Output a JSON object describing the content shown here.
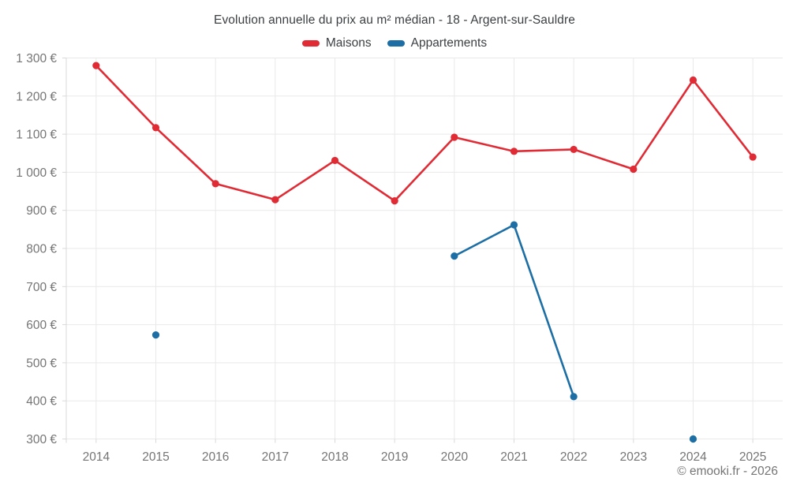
{
  "page": {
    "title": "Evolution annuelle du prix au m² médian - 18 - Argent-sur-Sauldre",
    "copyright": "© emooki.fr - 2026",
    "background": "#ffffff"
  },
  "chart_data": {
    "type": "line",
    "title": "Evolution annuelle du prix au m² médian - 18 - Argent-sur-Sauldre",
    "xlabel": "",
    "ylabel": "",
    "categories": [
      "2014",
      "2015",
      "2016",
      "2017",
      "2018",
      "2019",
      "2020",
      "2021",
      "2022",
      "2023",
      "2024",
      "2025"
    ],
    "series": [
      {
        "name": "Maisons",
        "color": "#e02b35",
        "values": [
          1280,
          1117,
          970,
          928,
          1031,
          925,
          1092,
          1055,
          1060,
          1008,
          1242,
          1040
        ]
      },
      {
        "name": "Appartements",
        "color": "#1c6ea4",
        "values": [
          null,
          573,
          null,
          null,
          null,
          null,
          780,
          862,
          411,
          null,
          300,
          null
        ]
      }
    ],
    "ylim": [
      300,
      1300
    ],
    "ytick_step": 100,
    "ytick_labels": [
      "300 €",
      "400 €",
      "500 €",
      "600 €",
      "700 €",
      "800 €",
      "900 €",
      "1 000 €",
      "1 100 €",
      "1 200 €",
      "1 300 €"
    ],
    "grid": true,
    "grid_color": "#e9e9e9",
    "axis_color": "#d9d9d9",
    "label_color": "#757575",
    "legend_position": "top",
    "line_breaks_on_null": true
  }
}
